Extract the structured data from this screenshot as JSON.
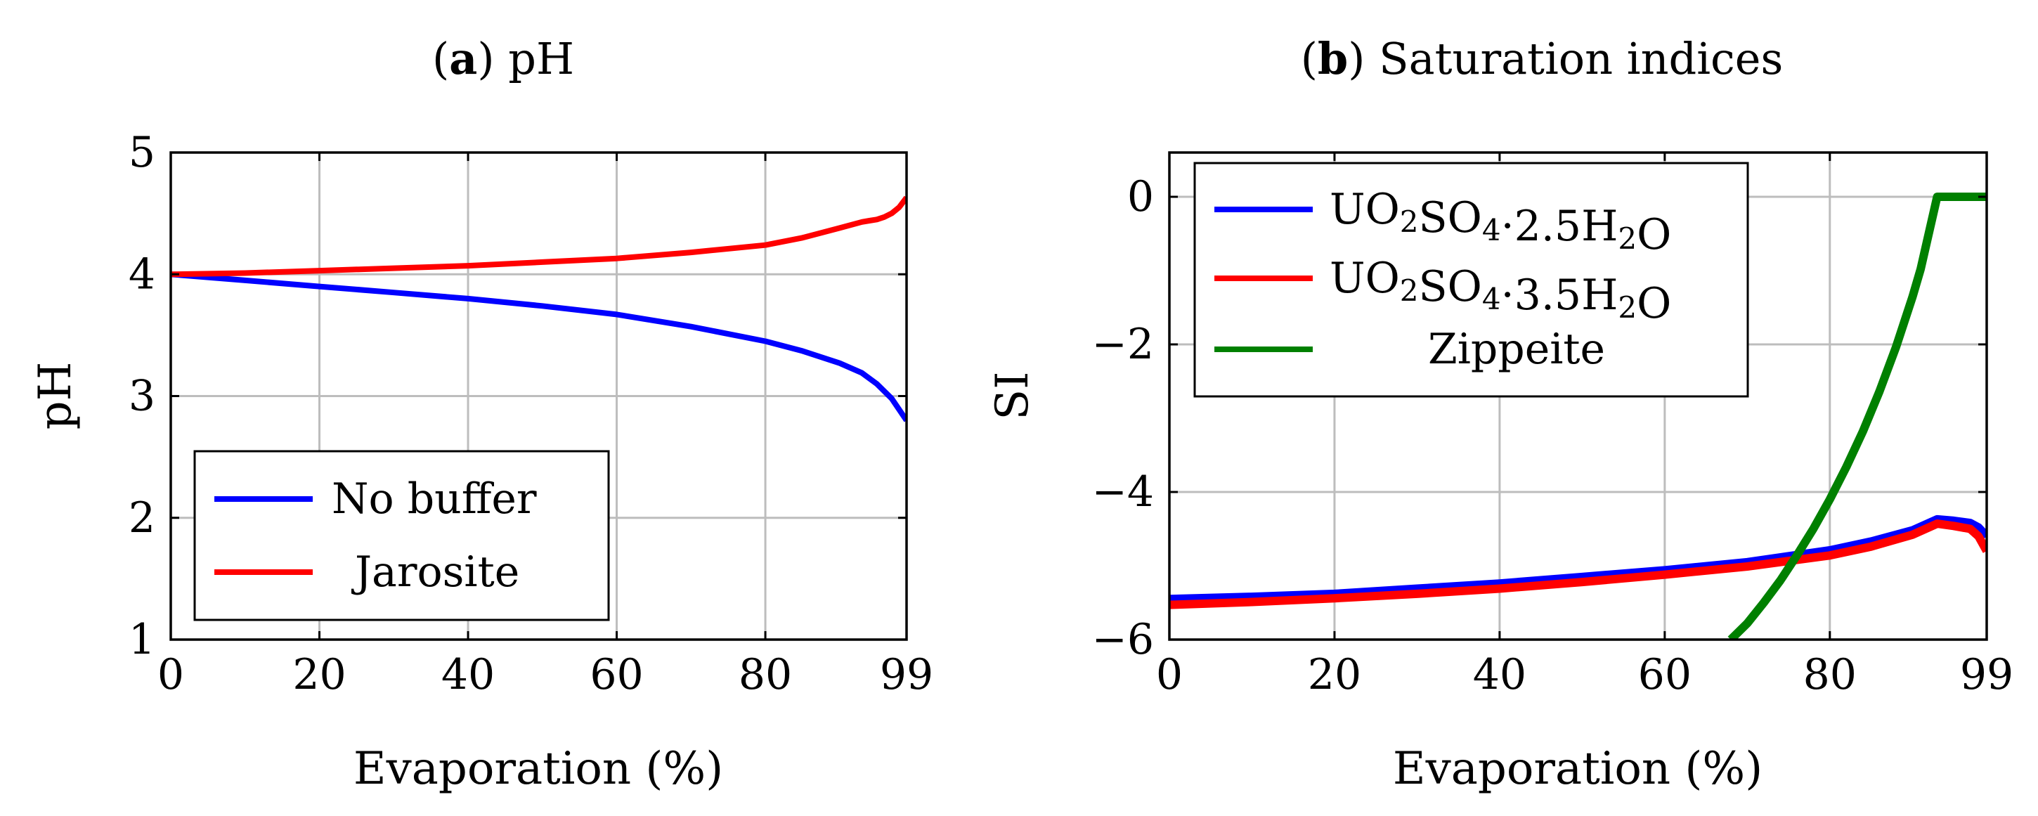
{
  "chart_data": [
    {
      "type": "line",
      "title_prefix": "a",
      "title_text": " pH",
      "xlabel": "Evaporation (%)",
      "ylabel": "pH",
      "xlim": [
        0,
        99
      ],
      "ylim": [
        1,
        5
      ],
      "xticks": [
        0,
        20,
        40,
        60,
        80,
        99
      ],
      "yticks": [
        1,
        2,
        3,
        4,
        5
      ],
      "grid": true,
      "legend_position": "bottom-left",
      "series": [
        {
          "name": "No buffer",
          "color": "#0000ff",
          "x": [
            0,
            10,
            20,
            30,
            40,
            50,
            60,
            70,
            80,
            85,
            90,
            93,
            95,
            97,
            98,
            99
          ],
          "y": [
            4.0,
            3.95,
            3.9,
            3.85,
            3.8,
            3.74,
            3.67,
            3.57,
            3.45,
            3.37,
            3.27,
            3.19,
            3.1,
            2.98,
            2.89,
            2.8
          ]
        },
        {
          "name": "Jarosite",
          "color": "#ff0000",
          "x": [
            0,
            10,
            20,
            30,
            40,
            50,
            60,
            70,
            80,
            85,
            90,
            93,
            94,
            95,
            96,
            97,
            98,
            99
          ],
          "y": [
            4.0,
            4.01,
            4.03,
            4.05,
            4.07,
            4.1,
            4.13,
            4.18,
            4.24,
            4.3,
            4.38,
            4.43,
            4.44,
            4.45,
            4.47,
            4.5,
            4.55,
            4.63
          ]
        }
      ]
    },
    {
      "type": "line",
      "title_prefix": "b",
      "title_text": " Saturation indices",
      "xlabel": "Evaporation (%)",
      "ylabel": "SI",
      "xlim": [
        0,
        99
      ],
      "ylim": [
        -6,
        0.6
      ],
      "xticks": [
        0,
        20,
        40,
        60,
        80,
        99
      ],
      "yticks": [
        0,
        -2,
        -4,
        -6
      ],
      "ytick_labels": [
        "0",
        "−2",
        "−4",
        "−6"
      ],
      "grid": true,
      "legend_position": "top-left",
      "series": [
        {
          "name": "UO2SO4·2.5H2O",
          "color": "#0000ff",
          "x": [
            0,
            10,
            20,
            30,
            40,
            50,
            60,
            70,
            80,
            85,
            90,
            93,
            95,
            97,
            98,
            99
          ],
          "y": [
            -5.45,
            -5.42,
            -5.38,
            -5.31,
            -5.24,
            -5.15,
            -5.06,
            -4.95,
            -4.79,
            -4.67,
            -4.52,
            -4.37,
            -4.39,
            -4.42,
            -4.48,
            -4.6
          ]
        },
        {
          "name": "UO2SO4·3.5H2O",
          "color": "#ff0000",
          "x": [
            0,
            10,
            20,
            30,
            40,
            50,
            60,
            70,
            80,
            85,
            90,
            93,
            95,
            97,
            98,
            99
          ],
          "y": [
            -5.53,
            -5.49,
            -5.44,
            -5.38,
            -5.31,
            -5.22,
            -5.12,
            -5.01,
            -4.86,
            -4.74,
            -4.58,
            -4.43,
            -4.46,
            -4.5,
            -4.6,
            -4.8
          ]
        },
        {
          "name": "Zippeite",
          "color": "#008000",
          "x": [
            68,
            70,
            72,
            74,
            76,
            78,
            80,
            82,
            84,
            86,
            88,
            90,
            91,
            93,
            95,
            97,
            99
          ],
          "y": [
            -6.0,
            -5.78,
            -5.5,
            -5.2,
            -4.86,
            -4.5,
            -4.1,
            -3.66,
            -3.18,
            -2.64,
            -2.04,
            -1.36,
            -0.98,
            0.0,
            0.0,
            0.0,
            0.0
          ]
        }
      ]
    }
  ]
}
